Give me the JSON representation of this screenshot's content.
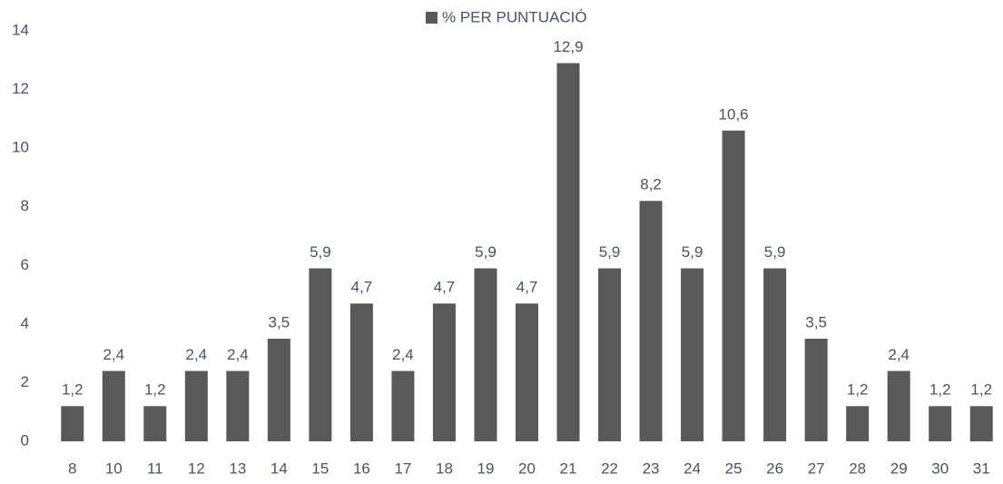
{
  "chart_data": {
    "type": "bar",
    "categories": [
      "8",
      "10",
      "11",
      "12",
      "13",
      "14",
      "15",
      "16",
      "17",
      "18",
      "19",
      "20",
      "21",
      "22",
      "23",
      "24",
      "25",
      "26",
      "27",
      "28",
      "29",
      "30",
      "31"
    ],
    "series": [
      {
        "name": "% PER PUNTUACIÓ",
        "color": "#595959",
        "values": [
          1.2,
          2.4,
          1.2,
          2.4,
          2.4,
          3.5,
          5.9,
          4.7,
          2.4,
          4.7,
          5.9,
          4.7,
          12.9,
          5.9,
          8.2,
          5.9,
          10.6,
          5.9,
          3.5,
          1.2,
          2.4,
          1.2,
          1.2
        ],
        "value_labels": [
          "1,2",
          "2,4",
          "1,2",
          "2,4",
          "2,4",
          "3,5",
          "5,9",
          "4,7",
          "2,4",
          "4,7",
          "5,9",
          "4,7",
          "12,9",
          "5,9",
          "8,2",
          "5,9",
          "10,6",
          "5,9",
          "3,5",
          "1,2",
          "2,4",
          "1,2",
          "1,2"
        ]
      }
    ],
    "ylim": [
      0,
      14
    ],
    "yticks": [
      0,
      2,
      4,
      6,
      8,
      10,
      12,
      14
    ],
    "grid": false,
    "legend": "top"
  }
}
